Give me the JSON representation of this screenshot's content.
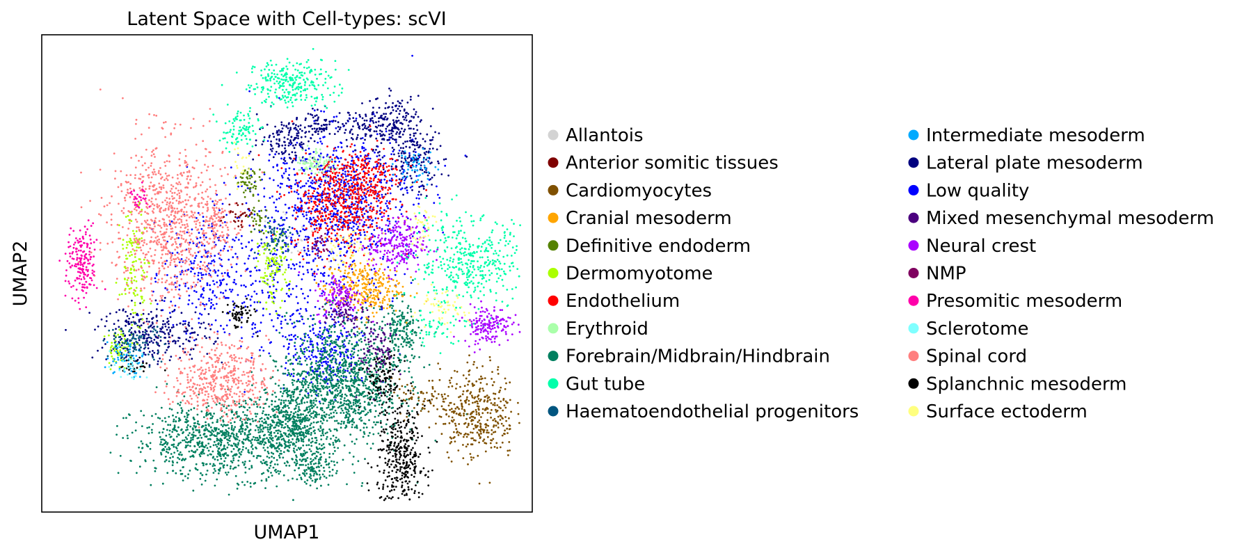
{
  "chart_data": {
    "type": "scatter",
    "title": "Latent Space with Cell-types: scVI",
    "xlabel": "UMAP1",
    "ylabel": "UMAP2",
    "ticks": "none",
    "grid": false,
    "legend_position": "right, two columns",
    "legend": [
      {
        "name": "Allantois",
        "color": "#d3d3d3"
      },
      {
        "name": "Anterior somitic tissues",
        "color": "#7f0000"
      },
      {
        "name": "Cardiomyocytes",
        "color": "#7f5000"
      },
      {
        "name": "Cranial mesoderm",
        "color": "#ffa500"
      },
      {
        "name": "Definitive endoderm",
        "color": "#548200"
      },
      {
        "name": "Dermomyotome",
        "color": "#aaff00"
      },
      {
        "name": "Endothelium",
        "color": "#ff0000"
      },
      {
        "name": "Erythroid",
        "color": "#aaffaa"
      },
      {
        "name": "Forebrain/Midbrain/Hindbrain",
        "color": "#007f5f"
      },
      {
        "name": "Gut tube",
        "color": "#00ffaa"
      },
      {
        "name": "Haematoendothelial progenitors",
        "color": "#00557f"
      },
      {
        "name": "Intermediate mesoderm",
        "color": "#00aaff"
      },
      {
        "name": "Lateral plate mesoderm",
        "color": "#00007f"
      },
      {
        "name": "Low quality",
        "color": "#0000ff"
      },
      {
        "name": "Mixed mesenchymal mesoderm",
        "color": "#4b007f"
      },
      {
        "name": "Neural crest",
        "color": "#aa00ff"
      },
      {
        "name": "NMP",
        "color": "#7f005f"
      },
      {
        "name": "Presomitic mesoderm",
        "color": "#ff00aa"
      },
      {
        "name": "Sclerotome",
        "color": "#7fffff"
      },
      {
        "name": "Spinal cord",
        "color": "#ff7f7f"
      },
      {
        "name": "Splanchnic mesoderm",
        "color": "#000000"
      },
      {
        "name": "Surface ectoderm",
        "color": "#ffff7f"
      }
    ],
    "points_note": "Per-cell UMAP coordinates are not printed; clusters approximated below in unitless UMAP space (x right, y up, range 0-100).",
    "clusters": [
      {
        "series": 9,
        "x": 51,
        "y": 91,
        "sx": 4.5,
        "sy": 2.5,
        "n": 260
      },
      {
        "series": 9,
        "x": 40,
        "y": 81,
        "sx": 2,
        "sy": 2,
        "n": 90
      },
      {
        "series": 9,
        "x": 88,
        "y": 52,
        "sx": 6,
        "sy": 5,
        "n": 420
      },
      {
        "series": 9,
        "x": 81,
        "y": 38,
        "sx": 3,
        "sy": 2,
        "n": 40
      },
      {
        "series": 12,
        "x": 50,
        "y": 79,
        "sx": 3,
        "sy": 2.5,
        "n": 120
      },
      {
        "series": 12,
        "x": 57,
        "y": 82,
        "sx": 3,
        "sy": 1.5,
        "n": 80
      },
      {
        "series": 12,
        "x": 72,
        "y": 82,
        "sx": 3,
        "sy": 3,
        "n": 200
      },
      {
        "series": 12,
        "x": 77,
        "y": 74,
        "sx": 3,
        "sy": 3.5,
        "n": 160
      },
      {
        "series": 12,
        "x": 22,
        "y": 37,
        "sx": 6,
        "sy": 3,
        "n": 280
      },
      {
        "series": 12,
        "x": 65,
        "y": 81,
        "sx": 2,
        "sy": 1.5,
        "n": 50
      },
      {
        "series": 13,
        "x": 61,
        "y": 67,
        "sx": 8,
        "sy": 7,
        "n": 800
      },
      {
        "series": 13,
        "x": 50,
        "y": 50,
        "sx": 10,
        "sy": 10,
        "n": 500
      },
      {
        "series": 13,
        "x": 58,
        "y": 32,
        "sx": 4,
        "sy": 4,
        "n": 200
      },
      {
        "series": 13,
        "x": 32,
        "y": 50,
        "sx": 4,
        "sy": 6,
        "n": 200
      },
      {
        "series": 6,
        "x": 61,
        "y": 65,
        "sx": 5,
        "sy": 5,
        "n": 450
      },
      {
        "series": 6,
        "x": 66,
        "y": 71,
        "sx": 4,
        "sy": 3,
        "n": 200
      },
      {
        "series": 8,
        "x": 62,
        "y": 26,
        "sx": 6,
        "sy": 7,
        "n": 1100
      },
      {
        "series": 8,
        "x": 36,
        "y": 14,
        "sx": 9,
        "sy": 4,
        "n": 900
      },
      {
        "series": 8,
        "x": 51,
        "y": 18,
        "sx": 4,
        "sy": 5,
        "n": 500
      },
      {
        "series": 8,
        "x": 74,
        "y": 37,
        "sx": 2,
        "sy": 3.5,
        "n": 180
      },
      {
        "series": 8,
        "x": 56,
        "y": 8,
        "sx": 2,
        "sy": 2,
        "n": 100
      },
      {
        "series": 19,
        "x": 25,
        "y": 61,
        "sx": 6,
        "sy": 9,
        "n": 850
      },
      {
        "series": 19,
        "x": 35,
        "y": 60,
        "sx": 2,
        "sy": 3,
        "n": 100
      },
      {
        "series": 19,
        "x": 36,
        "y": 27,
        "sx": 5,
        "sy": 4,
        "n": 450
      },
      {
        "series": 17,
        "x": 7,
        "y": 52,
        "sx": 1.6,
        "sy": 4,
        "n": 180
      },
      {
        "series": 17,
        "x": 19,
        "y": 66,
        "sx": 1,
        "sy": 1.5,
        "n": 30
      },
      {
        "series": 15,
        "x": 73,
        "y": 56,
        "sx": 3,
        "sy": 3,
        "n": 230
      },
      {
        "series": 15,
        "x": 61,
        "y": 45,
        "sx": 2.5,
        "sy": 2.5,
        "n": 130
      },
      {
        "series": 15,
        "x": 92,
        "y": 39,
        "sx": 2.5,
        "sy": 2,
        "n": 160
      },
      {
        "series": 3,
        "x": 66,
        "y": 47,
        "sx": 4,
        "sy": 3,
        "n": 300
      },
      {
        "series": 2,
        "x": 90,
        "y": 20,
        "sx": 4,
        "sy": 5,
        "n": 380
      },
      {
        "series": 2,
        "x": 78,
        "y": 23,
        "sx": 3,
        "sy": 2,
        "n": 60
      },
      {
        "series": 20,
        "x": 74,
        "y": 10,
        "sx": 2.5,
        "sy": 6,
        "n": 380
      },
      {
        "series": 20,
        "x": 70,
        "y": 27,
        "sx": 2,
        "sy": 3,
        "n": 100
      },
      {
        "series": 20,
        "x": 40,
        "y": 41,
        "sx": 1.5,
        "sy": 1.5,
        "n": 60
      },
      {
        "series": 20,
        "x": 18,
        "y": 30,
        "sx": 1.5,
        "sy": 1,
        "n": 30
      },
      {
        "series": 14,
        "x": 69,
        "y": 34,
        "sx": 2,
        "sy": 4,
        "n": 100
      },
      {
        "series": 14,
        "x": 62,
        "y": 41,
        "sx": 2,
        "sy": 1.5,
        "n": 60
      },
      {
        "series": 5,
        "x": 47,
        "y": 51,
        "sx": 1.5,
        "sy": 4,
        "n": 120
      },
      {
        "series": 5,
        "x": 18,
        "y": 52,
        "sx": 1.5,
        "sy": 6,
        "n": 110
      },
      {
        "series": 5,
        "x": 15,
        "y": 34,
        "sx": 1.5,
        "sy": 2,
        "n": 60
      },
      {
        "series": 4,
        "x": 42,
        "y": 70,
        "sx": 1.3,
        "sy": 1.3,
        "n": 50
      },
      {
        "series": 4,
        "x": 44,
        "y": 62,
        "sx": 1,
        "sy": 2,
        "n": 30
      },
      {
        "series": 7,
        "x": 56,
        "y": 74,
        "sx": 2,
        "sy": 1.5,
        "n": 80
      },
      {
        "series": 11,
        "x": 77,
        "y": 73,
        "sx": 2,
        "sy": 2,
        "n": 50
      },
      {
        "series": 11,
        "x": 16,
        "y": 32,
        "sx": 2,
        "sy": 2,
        "n": 50
      },
      {
        "series": 21,
        "x": 78,
        "y": 60,
        "sx": 1.5,
        "sy": 3,
        "n": 40
      },
      {
        "series": 21,
        "x": 63,
        "y": 56,
        "sx": 3,
        "sy": 2,
        "n": 50
      },
      {
        "series": 21,
        "x": 82,
        "y": 42,
        "sx": 3,
        "sy": 2,
        "n": 60
      },
      {
        "series": 21,
        "x": 40,
        "y": 73,
        "sx": 1,
        "sy": 2,
        "n": 20
      },
      {
        "series": 10,
        "x": 18,
        "y": 35,
        "sx": 3,
        "sy": 2,
        "n": 90
      },
      {
        "series": 10,
        "x": 48,
        "y": 58,
        "sx": 2,
        "sy": 2,
        "n": 60
      },
      {
        "series": 16,
        "x": 57,
        "y": 56,
        "sx": 1.5,
        "sy": 1.5,
        "n": 30
      },
      {
        "series": 1,
        "x": 40,
        "y": 63,
        "sx": 1.5,
        "sy": 1.5,
        "n": 30
      },
      {
        "series": 18,
        "x": 17,
        "y": 30,
        "sx": 2,
        "sy": 1.5,
        "n": 30
      },
      {
        "series": 0,
        "x": 52,
        "y": 57,
        "sx": 4,
        "sy": 4,
        "n": 30
      }
    ]
  }
}
